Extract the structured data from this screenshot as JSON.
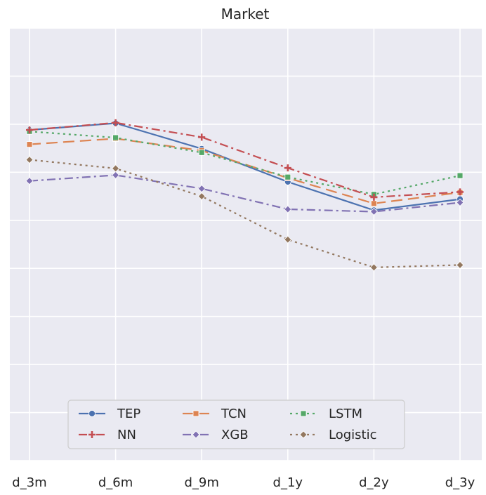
{
  "chart_data": {
    "type": "line",
    "title": "Market",
    "xlabel": "",
    "ylabel": "",
    "categories": [
      "d_3m",
      "d_6m",
      "d_9m",
      "d_1y",
      "d_2y",
      "d_3y"
    ],
    "ylim": [
      0,
      9
    ],
    "yticks": [
      0,
      1,
      2,
      3,
      4,
      5,
      6,
      7,
      8,
      9
    ],
    "grid": true,
    "background": "#eaeaf2",
    "legend": {
      "position": "lower-center",
      "columns": 3
    },
    "series": [
      {
        "name": "TEP",
        "values": [
          6.88,
          7.02,
          6.49,
          5.8,
          5.21,
          5.44
        ],
        "color": "#4c72b0",
        "dash": "",
        "marker": "circle"
      },
      {
        "name": "TCN",
        "values": [
          6.58,
          6.7,
          6.45,
          5.88,
          5.35,
          5.58
        ],
        "color": "#dd8452",
        "dash": "16,8",
        "marker": "square"
      },
      {
        "name": "LSTM",
        "values": [
          6.85,
          6.72,
          6.41,
          5.9,
          5.54,
          5.93
        ],
        "color": "#55a868",
        "dash": "3,5",
        "marker": "square"
      },
      {
        "name": "NN",
        "values": [
          6.88,
          7.03,
          6.73,
          6.09,
          5.48,
          5.59
        ],
        "color": "#c44e52",
        "dash": "12,5,3,5",
        "marker": "plus"
      },
      {
        "name": "XGB",
        "values": [
          5.82,
          5.94,
          5.66,
          5.23,
          5.18,
          5.37
        ],
        "color": "#8172b3",
        "dash": "12,5,3,5",
        "marker": "diamond"
      },
      {
        "name": "Logistic",
        "values": [
          6.26,
          6.08,
          5.5,
          4.6,
          4.02,
          4.07
        ],
        "color": "#937860",
        "dash": "3,5",
        "marker": "diamond"
      }
    ]
  }
}
